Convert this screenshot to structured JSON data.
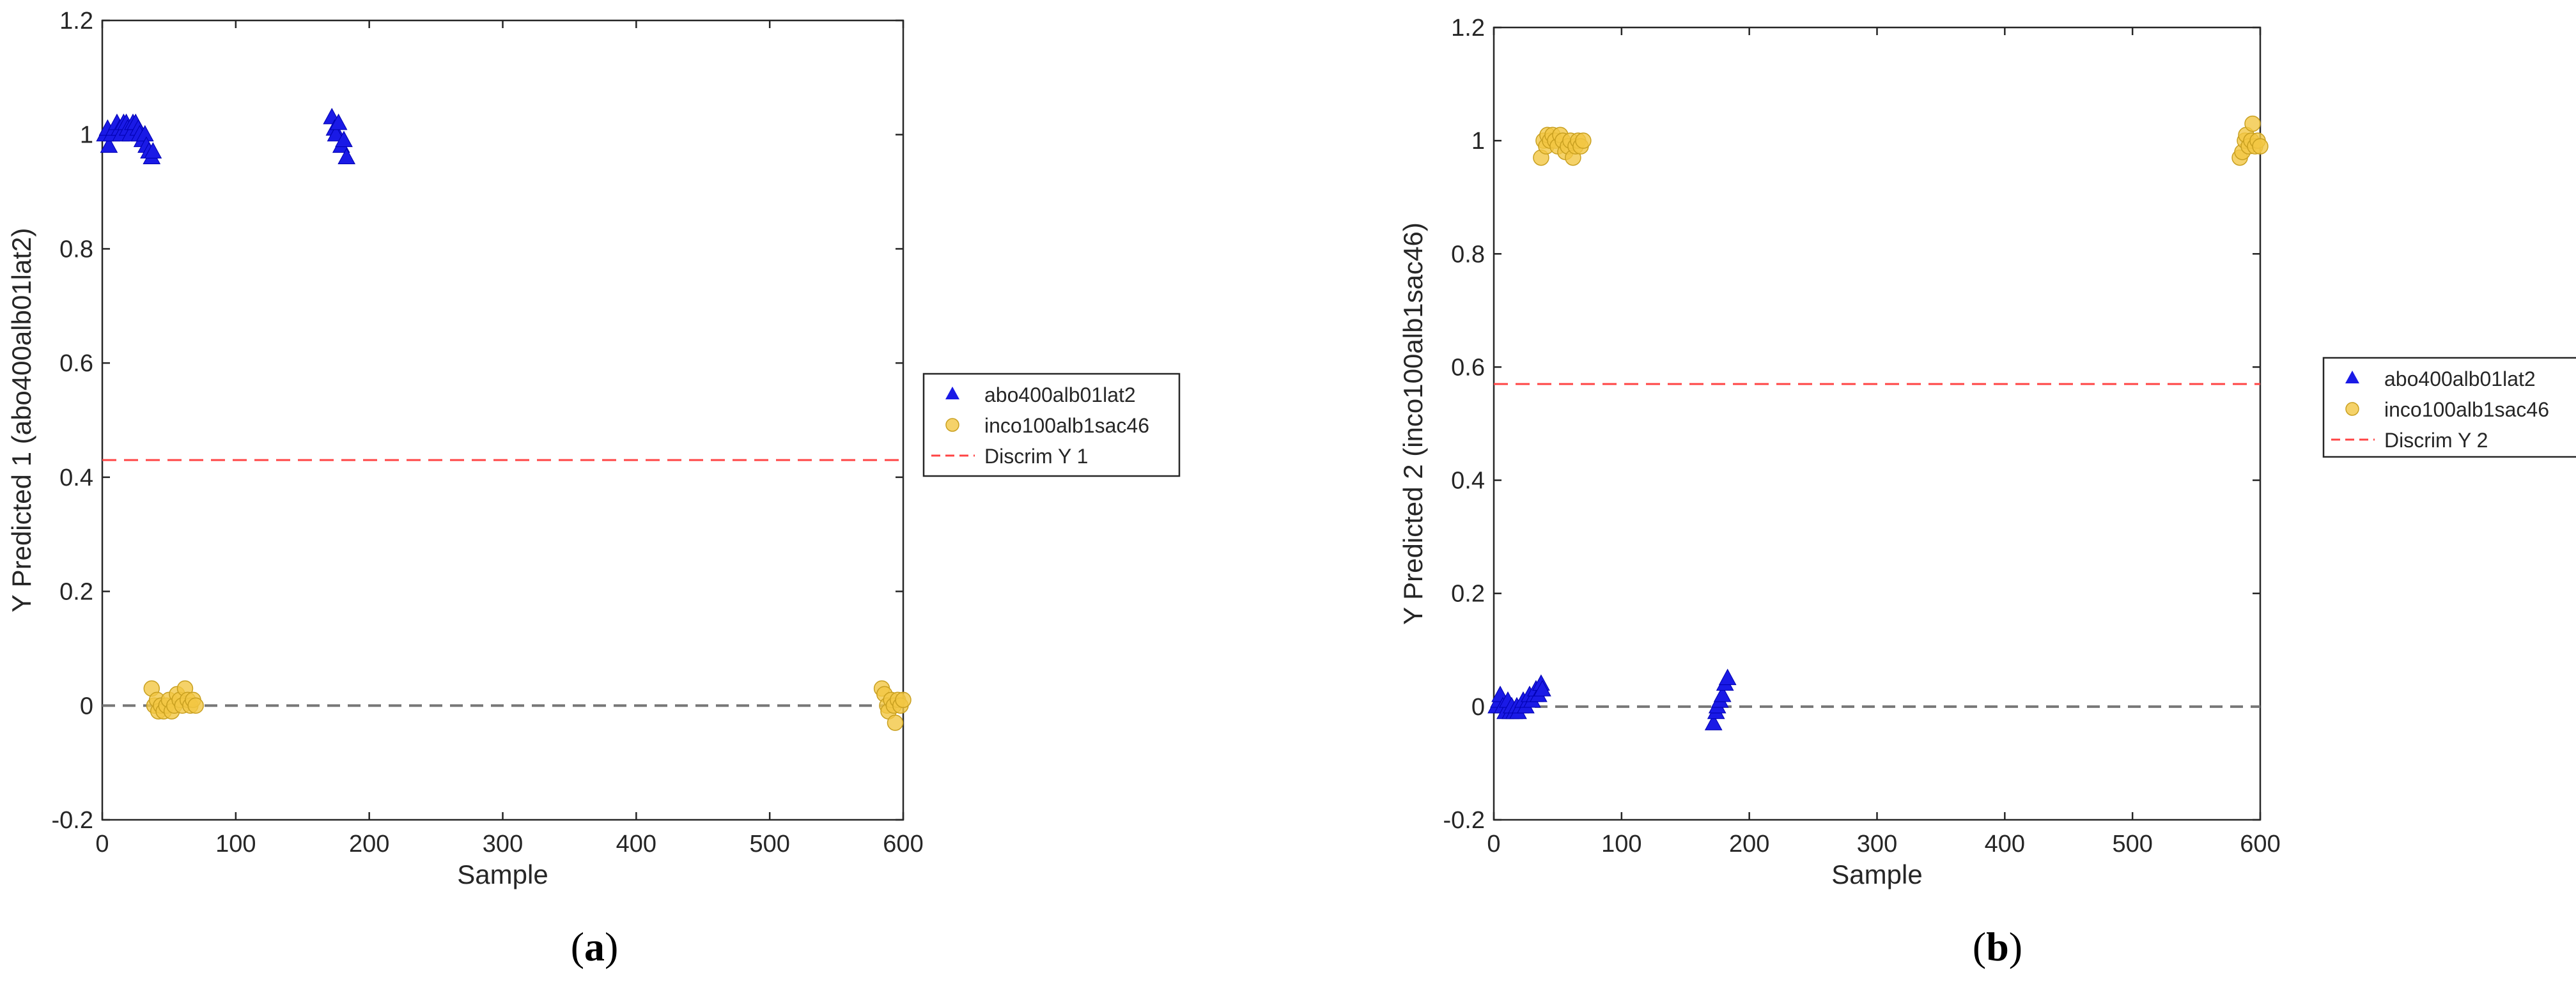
{
  "chart_data": [
    {
      "type": "scatter",
      "panel_label": "a",
      "title": "",
      "xlabel": "Sample",
      "ylabel": "Y Predicted 1 (abo400alb01lat2)",
      "xlim": [
        0,
        600
      ],
      "ylim": [
        -0.2,
        1.2
      ],
      "xticks": [
        0,
        100,
        200,
        300,
        400,
        500,
        600
      ],
      "yticks": [
        -0.2,
        0,
        0.2,
        0.4,
        0.6,
        0.8,
        1,
        1.2
      ],
      "series": [
        {
          "name": "abo400alb01lat2",
          "marker": "triangle",
          "color": "#1a1ae6",
          "points": [
            [
              2,
              1.0
            ],
            [
              4,
              1.01
            ],
            [
              5,
              0.98
            ],
            [
              7,
              1.0
            ],
            [
              9,
              1.01
            ],
            [
              11,
              1.02
            ],
            [
              13,
              1.01
            ],
            [
              14,
              1.0
            ],
            [
              16,
              1.02
            ],
            [
              18,
              1.02
            ],
            [
              19,
              1.01
            ],
            [
              21,
              1.0
            ],
            [
              23,
              1.02
            ],
            [
              25,
              1.02
            ],
            [
              27,
              1.01
            ],
            [
              28,
              1.0
            ],
            [
              30,
              0.99
            ],
            [
              32,
              1.0
            ],
            [
              33,
              0.98
            ],
            [
              35,
              0.97
            ],
            [
              37,
              0.96
            ],
            [
              38,
              0.97
            ],
            [
              172,
              1.03
            ],
            [
              174,
              1.01
            ],
            [
              175,
              1.0
            ],
            [
              177,
              1.02
            ],
            [
              179,
              0.98
            ],
            [
              181,
              0.99
            ],
            [
              183,
              0.96
            ]
          ]
        },
        {
          "name": "inco100alb1sac46",
          "marker": "circle",
          "color": "#f2c744",
          "points": [
            [
              37,
              0.03
            ],
            [
              39,
              0.0
            ],
            [
              41,
              0.01
            ],
            [
              42,
              -0.01
            ],
            [
              44,
              0.0
            ],
            [
              46,
              -0.01
            ],
            [
              48,
              0.0
            ],
            [
              50,
              0.01
            ],
            [
              52,
              -0.01
            ],
            [
              54,
              0.0
            ],
            [
              56,
              0.02
            ],
            [
              58,
              0.01
            ],
            [
              60,
              0.0
            ],
            [
              62,
              0.03
            ],
            [
              64,
              0.01
            ],
            [
              66,
              0.0
            ],
            [
              68,
              0.01
            ],
            [
              70,
              0.0
            ],
            [
              584,
              0.03
            ],
            [
              586,
              0.02
            ],
            [
              588,
              0.0
            ],
            [
              589,
              -0.01
            ],
            [
              591,
              0.01
            ],
            [
              593,
              0.0
            ],
            [
              594,
              -0.03
            ],
            [
              596,
              0.01
            ],
            [
              598,
              0.0
            ],
            [
              600,
              0.01
            ]
          ]
        },
        {
          "name": "Discrim Y 1",
          "marker": "dashed-line",
          "color": "#ff4444",
          "y": 0.43
        }
      ],
      "zero_line": {
        "y": 0,
        "color": "#777777"
      },
      "legend": {
        "position": "right",
        "entries": [
          "abo400alb01lat2",
          "inco100alb1sac46",
          "Discrim Y 1"
        ]
      }
    },
    {
      "type": "scatter",
      "panel_label": "b",
      "title": "",
      "xlabel": "Sample",
      "ylabel": "Y Predicted 2 (inco100alb1sac46)",
      "xlim": [
        0,
        600
      ],
      "ylim": [
        -0.2,
        1.2
      ],
      "xticks": [
        0,
        100,
        200,
        300,
        400,
        500,
        600
      ],
      "yticks": [
        -0.2,
        0,
        0.2,
        0.4,
        0.6,
        0.8,
        1,
        1.2
      ],
      "series": [
        {
          "name": "abo400alb01lat2",
          "marker": "triangle",
          "color": "#1a1ae6",
          "points": [
            [
              2,
              0.0
            ],
            [
              4,
              0.01
            ],
            [
              5,
              0.02
            ],
            [
              7,
              0.0
            ],
            [
              9,
              -0.01
            ],
            [
              11,
              0.01
            ],
            [
              13,
              -0.01
            ],
            [
              14,
              0.0
            ],
            [
              16,
              -0.01
            ],
            [
              18,
              0.0
            ],
            [
              19,
              -0.01
            ],
            [
              21,
              0.0
            ],
            [
              23,
              0.01
            ],
            [
              25,
              0.0
            ],
            [
              27,
              0.01
            ],
            [
              28,
              0.02
            ],
            [
              30,
              0.01
            ],
            [
              32,
              0.02
            ],
            [
              33,
              0.03
            ],
            [
              35,
              0.02
            ],
            [
              37,
              0.04
            ],
            [
              38,
              0.03
            ],
            [
              172,
              -0.03
            ],
            [
              174,
              -0.01
            ],
            [
              175,
              0.0
            ],
            [
              177,
              0.01
            ],
            [
              179,
              0.02
            ],
            [
              181,
              0.04
            ],
            [
              183,
              0.05
            ]
          ]
        },
        {
          "name": "inco100alb1sac46",
          "marker": "circle",
          "color": "#f2c744",
          "points": [
            [
              37,
              0.97
            ],
            [
              39,
              1.0
            ],
            [
              41,
              0.99
            ],
            [
              42,
              1.01
            ],
            [
              44,
              1.0
            ],
            [
              46,
              1.01
            ],
            [
              48,
              1.0
            ],
            [
              50,
              0.99
            ],
            [
              52,
              1.01
            ],
            [
              54,
              1.0
            ],
            [
              56,
              0.98
            ],
            [
              58,
              0.99
            ],
            [
              60,
              1.0
            ],
            [
              62,
              0.97
            ],
            [
              64,
              0.99
            ],
            [
              66,
              1.0
            ],
            [
              68,
              0.99
            ],
            [
              70,
              1.0
            ],
            [
              584,
              0.97
            ],
            [
              586,
              0.98
            ],
            [
              588,
              1.0
            ],
            [
              589,
              1.01
            ],
            [
              591,
              0.99
            ],
            [
              593,
              1.0
            ],
            [
              594,
              1.03
            ],
            [
              596,
              0.99
            ],
            [
              598,
              1.0
            ],
            [
              600,
              0.99
            ]
          ]
        },
        {
          "name": "Discrim Y 2",
          "marker": "dashed-line",
          "color": "#ff4444",
          "y": 0.57
        }
      ],
      "zero_line": {
        "y": 0,
        "color": "#777777"
      },
      "legend": {
        "position": "right",
        "entries": [
          "abo400alb01lat2",
          "inco100alb1sac46",
          "Discrim Y 2"
        ]
      }
    }
  ]
}
